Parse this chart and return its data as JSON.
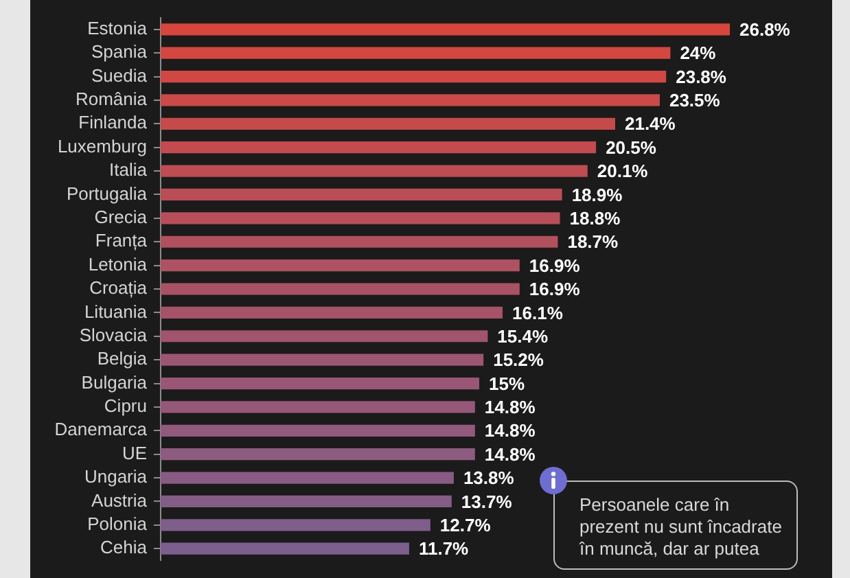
{
  "chart_data": {
    "type": "bar",
    "orientation": "horizontal",
    "categories": [
      "Estonia",
      "Spania",
      "Suedia",
      "România",
      "Finlanda",
      "Luxemburg",
      "Italia",
      "Portugalia",
      "Grecia",
      "Franța",
      "Letonia",
      "Croația",
      "Lituania",
      "Slovacia",
      "Belgia",
      "Bulgaria",
      "Cipru",
      "Danemarca",
      "UE",
      "Ungaria",
      "Austria",
      "Polonia",
      "Cehia"
    ],
    "values": [
      26.8,
      24,
      23.8,
      23.5,
      21.4,
      20.5,
      20.1,
      18.9,
      18.8,
      18.7,
      16.9,
      16.9,
      16.1,
      15.4,
      15.2,
      15,
      14.8,
      14.8,
      14.8,
      13.8,
      13.7,
      12.7,
      11.7
    ],
    "value_labels": [
      "26.8%",
      "24%",
      "23.8%",
      "23.5%",
      "21.4%",
      "20.5%",
      "20.1%",
      "18.9%",
      "18.8%",
      "18.7%",
      "16.9%",
      "16.9%",
      "16.1%",
      "15.4%",
      "15.2%",
      "15%",
      "14.8%",
      "14.8%",
      "14.8%",
      "13.8%",
      "13.7%",
      "12.7%",
      "11.7%"
    ],
    "colors": [
      "#d8453c",
      "#d44640",
      "#d04744",
      "#cb4947",
      "#c74a4b",
      "#c34b4f",
      "#bf4c53",
      "#bb4d56",
      "#b74e5a",
      "#b2505e",
      "#ae5162",
      "#aa5265",
      "#a65369",
      "#a2546d",
      "#9d5671",
      "#995775",
      "#955878",
      "#91597c",
      "#8d5a80",
      "#895b84",
      "#845d87",
      "#805e8b",
      "#7c5f8f"
    ],
    "tick_labels": "y",
    "legend": false,
    "annotations": [
      "Persoanele care în prezent nu sunt încadrate în muncă, dar ar putea"
    ]
  }
}
